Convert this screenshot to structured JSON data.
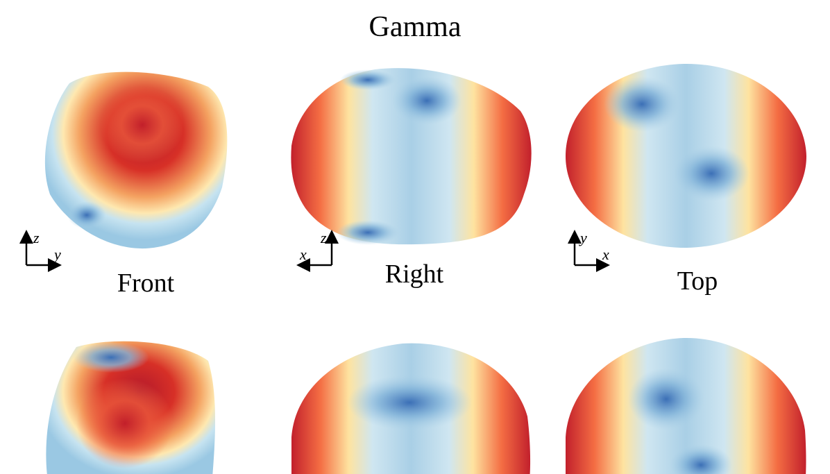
{
  "title": "Gamma",
  "views": [
    {
      "label": "Front",
      "axes": {
        "vertical": "z",
        "horizontal": "y"
      }
    },
    {
      "label": "Right",
      "axes": {
        "vertical": "z",
        "horizontal": "x"
      }
    },
    {
      "label": "Top",
      "axes": {
        "vertical": "y",
        "horizontal": "x"
      }
    }
  ]
}
